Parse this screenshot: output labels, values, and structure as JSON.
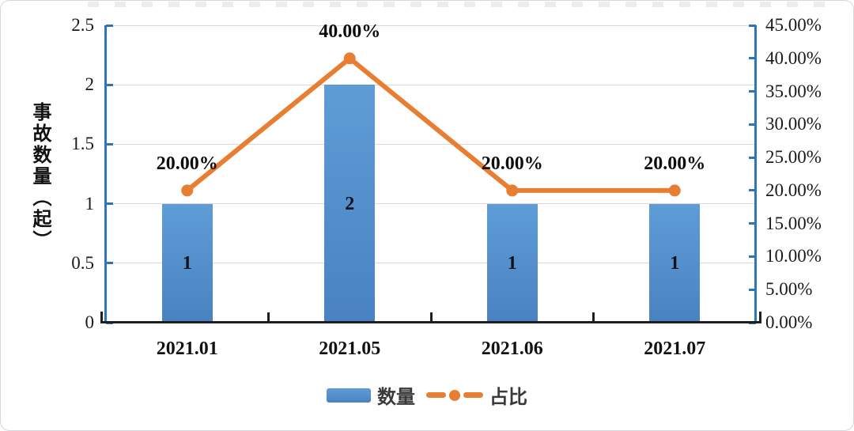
{
  "chart_data": {
    "type": "bar+line",
    "categories": [
      "2021.01",
      "2021.05",
      "2021.06",
      "2021.07"
    ],
    "series": [
      {
        "name": "数量",
        "type": "bar",
        "axis": "left",
        "values": [
          1,
          2,
          1,
          1
        ],
        "value_labels": [
          "1",
          "2",
          "1",
          "1"
        ]
      },
      {
        "name": "占比",
        "type": "line",
        "axis": "right",
        "values": [
          20,
          40,
          20,
          20
        ],
        "value_labels": [
          "20.00%",
          "40.00%",
          "20.00%",
          "20.00%"
        ]
      }
    ],
    "left_axis": {
      "title": "事故数量（起）",
      "min": 0,
      "max": 2.5,
      "step": 0.5,
      "ticks": [
        "2.5",
        "2",
        "1.5",
        "1",
        "0.5",
        "0"
      ]
    },
    "right_axis": {
      "min": 0,
      "max": 45,
      "step": 5,
      "ticks": [
        "45.00%",
        "40.00%",
        "35.00%",
        "30.00%",
        "25.00%",
        "20.00%",
        "15.00%",
        "10.00%",
        "5.00%",
        "0.00%"
      ]
    },
    "legend": [
      {
        "label": "数量",
        "marker": "bar-swatch"
      },
      {
        "label": "占比",
        "marker": "line-dash-dot"
      }
    ],
    "grid": true,
    "legend_position": "bottom"
  },
  "colors": {
    "bar_top": "#5f9cd6",
    "bar_bottom": "#4a82c1",
    "line": "#e87e31",
    "axis": "#2e75b6",
    "grid": "#d9d9d9",
    "x_axis": "#1f1f1f",
    "text": "#1a1a1a"
  }
}
